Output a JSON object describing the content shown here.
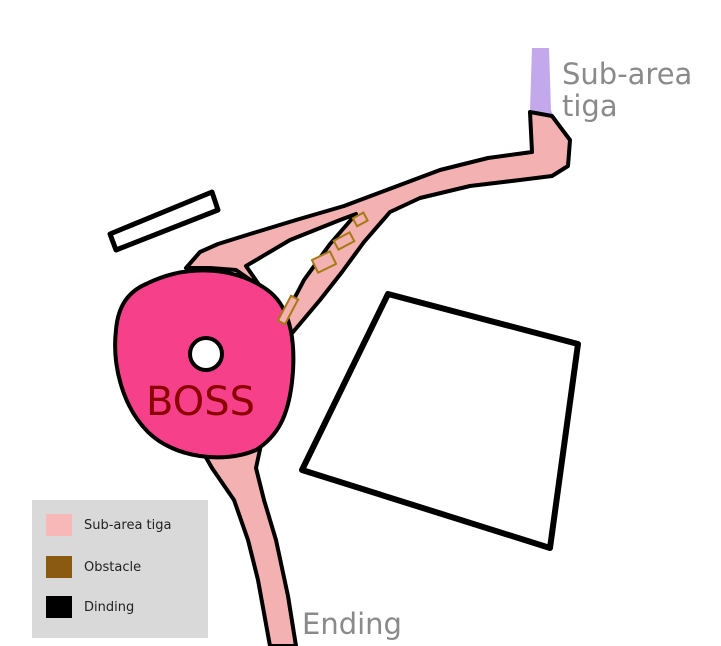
{
  "map": {
    "boss_label": "BOSS",
    "subarea_label_line1": "Sub-area",
    "subarea_label_line2": "tiga",
    "ending_label": "Ending",
    "colors": {
      "path": "#f4b1b1",
      "boss_room": "#f6418a",
      "sub_area_passage": "#c3a9ec",
      "outline": "#000000",
      "obstacle": "#a57a12",
      "boss_text": "#8b0000",
      "map_label_text": "#8a8a8a"
    }
  },
  "legend": {
    "items": [
      {
        "label": "Sub-area tiga",
        "color": "#f9b8b8",
        "icon": "pink-swatch"
      },
      {
        "label": "Obstacle",
        "color": "#8b5a12",
        "icon": "brown-swatch"
      },
      {
        "label": "Dinding",
        "color": "#000000",
        "icon": "black-swatch"
      }
    ]
  }
}
